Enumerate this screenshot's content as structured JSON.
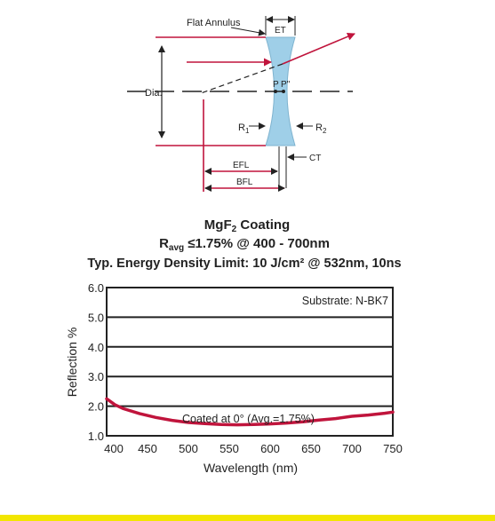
{
  "diagram": {
    "flat_annulus": "Flat Annulus",
    "et": "ET",
    "dia": "Dia.",
    "p": "P",
    "p2": "P\"",
    "r1": "R",
    "r1_sub": "1",
    "r2": "R",
    "r2_sub": "2",
    "ct": "CT",
    "efl": "EFL",
    "bfl": "BFL"
  },
  "coating": {
    "line1_main": "MgF",
    "line1_sub": "2",
    "line1_rest": " Coating",
    "line2_r": "R",
    "line2_sub": "avg",
    "line2_rest": " ≤1.75% @ 400 - 700nm",
    "line3": "Typ. Energy Density Limit: 10 J/cm² @ 532nm, 10ns"
  },
  "colors": {
    "accent": "#c0143c",
    "lens_fill": "#9fcfe8",
    "curve": "#c0143c",
    "bottom_bar": "#f2e600"
  },
  "chart_data": {
    "type": "line",
    "title": "",
    "xlabel": "Wavelength (nm)",
    "ylabel": "Reflection %",
    "xlim": [
      400,
      750
    ],
    "ylim": [
      1.0,
      6.0
    ],
    "x_ticks": [
      400,
      450,
      500,
      550,
      600,
      650,
      700,
      750
    ],
    "y_ticks": [
      "1.0",
      "2.0",
      "3.0",
      "4.0",
      "5.0",
      "6.0"
    ],
    "annotation_substrate": "Substrate: N-BK7",
    "annotation_curve": "Coated at 0°  (Avg.=1.75%)",
    "grid": "horizontal",
    "series": [
      {
        "x": [
          400,
          410,
          420,
          440,
          460,
          480,
          500,
          520,
          540,
          560,
          580,
          600,
          620,
          640,
          660,
          680,
          700,
          720,
          740,
          750
        ],
        "values": [
          2.25,
          2.05,
          1.92,
          1.75,
          1.62,
          1.52,
          1.45,
          1.41,
          1.38,
          1.37,
          1.38,
          1.4,
          1.43,
          1.47,
          1.53,
          1.58,
          1.66,
          1.7,
          1.76,
          1.8
        ]
      }
    ]
  }
}
